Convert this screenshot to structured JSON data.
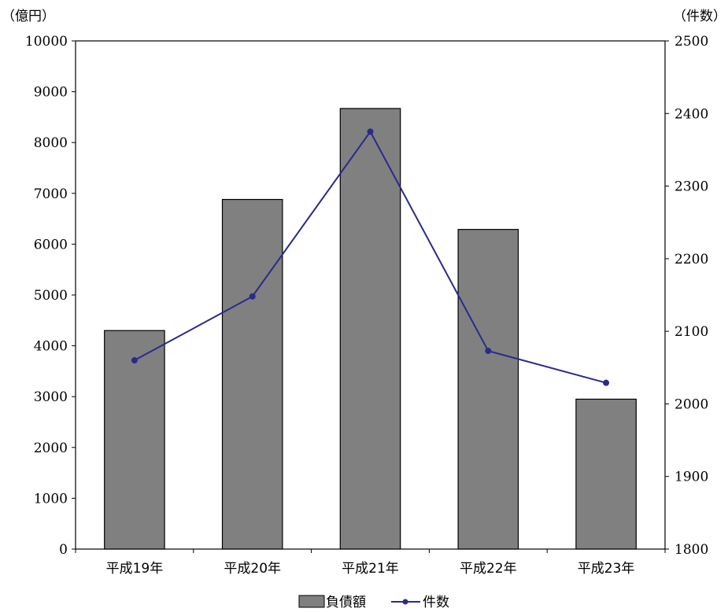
{
  "chart_data": {
    "type": "bar",
    "combo": "bar+line (dual axis)",
    "categories": [
      "平成19年",
      "平成20年",
      "平成21年",
      "平成22年",
      "平成23年"
    ],
    "series": [
      {
        "name": "負債額",
        "type": "bar",
        "axis": "left",
        "color": "#808080",
        "values": [
          4300,
          6880,
          8670,
          6290,
          2950
        ]
      },
      {
        "name": "件数",
        "type": "line",
        "axis": "right",
        "color": "#2a2a8c",
        "values": [
          2060,
          2148,
          2375,
          2073,
          2029
        ]
      }
    ],
    "left_axis": {
      "unit": "（億円）",
      "ylim": [
        0,
        10000
      ],
      "ticks": [
        "0",
        "1000",
        "2000",
        "3000",
        "4000",
        "5000",
        "6000",
        "7000",
        "8000",
        "9000",
        "10000"
      ]
    },
    "right_axis": {
      "unit": "（件数）",
      "ylim": [
        1800,
        2500
      ],
      "ticks": [
        "1800",
        "1900",
        "2000",
        "2100",
        "2200",
        "2300",
        "2400",
        "2500"
      ]
    },
    "grid": false,
    "legend_position": "bottom"
  }
}
